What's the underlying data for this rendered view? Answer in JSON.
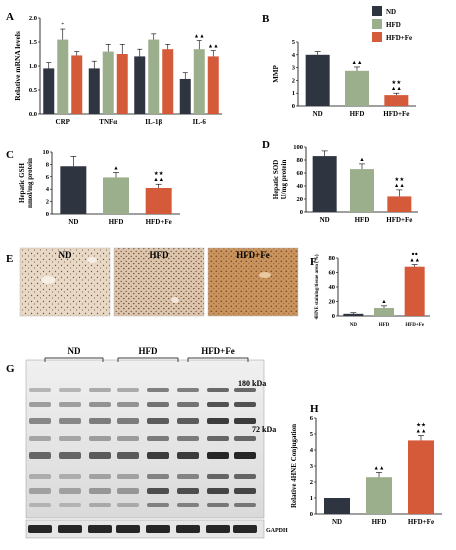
{
  "colors": {
    "ND": "#2f3441",
    "HFD": "#9caf8c",
    "HFD+Fe": "#d55a3a"
  },
  "legend": {
    "items": [
      "ND",
      "HFD",
      "HFD+Fe"
    ]
  },
  "panels": {
    "A": "A",
    "B": "B",
    "C": "C",
    "D": "D",
    "E": "E",
    "F": "F",
    "G": "G",
    "H": "H"
  },
  "chart_data": [
    {
      "panel": "A",
      "type": "bar",
      "categories": [
        "CRP",
        "TNFα",
        "IL-1β",
        "IL-6"
      ],
      "series": [
        {
          "name": "ND",
          "values": [
            0.95,
            0.95,
            1.2,
            0.73
          ],
          "errors": [
            0.12,
            0.15,
            0.15,
            0.13
          ]
        },
        {
          "name": "HFD",
          "values": [
            1.55,
            1.3,
            1.55,
            1.35
          ],
          "errors": [
            0.22,
            0.15,
            0.12,
            0.18
          ]
        },
        {
          "name": "HFD+Fe",
          "values": [
            1.22,
            1.25,
            1.35,
            1.2
          ],
          "errors": [
            0.08,
            0.2,
            0.1,
            0.12
          ]
        }
      ],
      "markers": [
        {
          "category": "CRP",
          "series": "HFD",
          "text": "*"
        },
        {
          "category": "IL-6",
          "series": "HFD",
          "text": "▲▲"
        },
        {
          "category": "IL-6",
          "series": "HFD+Fe",
          "text": "▲▲"
        }
      ],
      "ylabel": "Relative mRNA levels",
      "yticks": [
        "0.0",
        "0.5",
        "1.0",
        "1.5",
        "2.0"
      ],
      "ylim": [
        0,
        2
      ]
    },
    {
      "panel": "B",
      "type": "bar",
      "categories": [
        "ND",
        "HFD",
        "HFD+Fe"
      ],
      "values": [
        4.0,
        2.75,
        0.85
      ],
      "errors": [
        0.25,
        0.3,
        0.15
      ],
      "markers": [
        "",
        "▲▲",
        "★★\n▲▲"
      ],
      "ylabel": "MMP",
      "yticks": [
        "0",
        "1",
        "2",
        "3",
        "4",
        "5"
      ],
      "ylim": [
        0,
        5
      ]
    },
    {
      "panel": "C",
      "type": "bar",
      "categories": [
        "ND",
        "HFD",
        "HFD+Fe"
      ],
      "values": [
        7.7,
        5.9,
        4.2
      ],
      "errors": [
        1.6,
        0.8,
        0.6
      ],
      "markers": [
        "",
        "▲",
        "★★\n▲▲"
      ],
      "ylabel": [
        "Hepatic GSH",
        "nmol/mg protein"
      ],
      "yticks": [
        "0",
        "2",
        "4",
        "6",
        "8",
        "10"
      ],
      "ylim": [
        0,
        10
      ]
    },
    {
      "panel": "D",
      "type": "bar",
      "categories": [
        "ND",
        "HFD",
        "HFD+Fe"
      ],
      "values": [
        86,
        66,
        24
      ],
      "errors": [
        8,
        8,
        10
      ],
      "markers": [
        "",
        "▲",
        "★★\n▲▲"
      ],
      "ylabel": [
        "Hepatic SOD",
        "U/mg protein"
      ],
      "yticks": [
        "0",
        "20",
        "40",
        "60",
        "80",
        "100"
      ],
      "ylim": [
        0,
        100
      ]
    },
    {
      "panel": "F",
      "type": "bar",
      "categories": [
        "ND",
        "HFD",
        "HFD+Fe"
      ],
      "values": [
        3,
        11,
        68
      ],
      "errors": [
        1.5,
        3,
        3
      ],
      "markers": [
        "",
        "▲",
        "●●\n▲▲"
      ],
      "ylabel": "4HNE staining/tissue area (%)",
      "yticks": [
        "0",
        "20",
        "40",
        "60",
        "80"
      ],
      "ylim": [
        0,
        80
      ]
    },
    {
      "panel": "H",
      "type": "bar",
      "categories": [
        "ND",
        "HFD",
        "HFD+Fe"
      ],
      "values": [
        1.0,
        2.3,
        4.6
      ],
      "errors": [
        0,
        0.3,
        0.3
      ],
      "markers": [
        "",
        "▲▲",
        "★★\n▲▲"
      ],
      "ylabel": "Relative 4HNE Conjugation",
      "yticks": [
        "0",
        "1",
        "2",
        "3",
        "4",
        "5",
        "6"
      ],
      "ylim": [
        0,
        6
      ]
    }
  ],
  "histology": {
    "labels": [
      "ND",
      "HFD",
      "HFD+Fe"
    ]
  },
  "blot": {
    "group_labels": [
      "ND",
      "HFD",
      "HFD+Fe"
    ],
    "marker_180": "180 kDa",
    "marker_72": "72 kDa",
    "loading_label": "GAPDH"
  }
}
